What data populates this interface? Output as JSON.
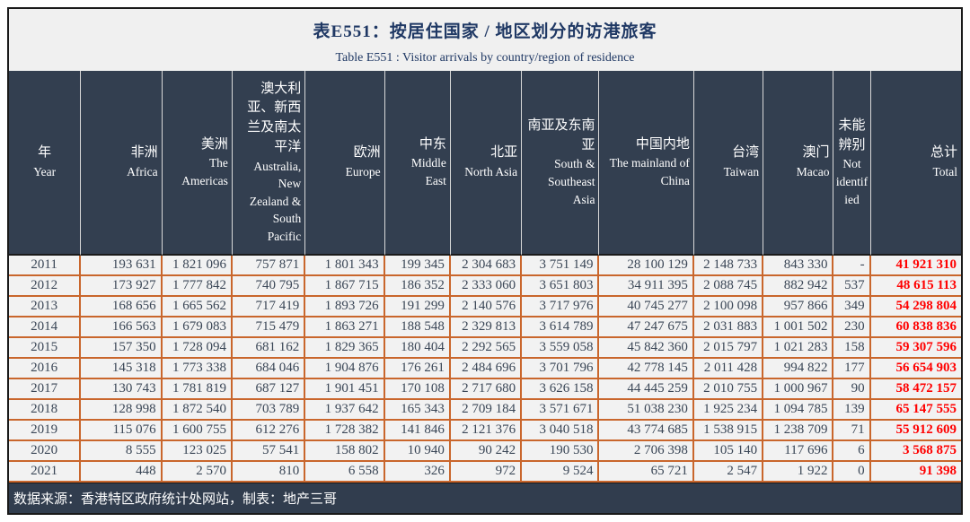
{
  "header": {
    "title_zh": "表E551：按居住国家 / 地区划分的访港旅客",
    "title_en": "Table E551 : Visitor arrivals by country/region of residence"
  },
  "columns": [
    {
      "key": "year",
      "zh": "年",
      "en": "Year"
    },
    {
      "key": "africa",
      "zh": "非洲",
      "en": "Africa"
    },
    {
      "key": "americas",
      "zh": "美洲",
      "en": "The Americas"
    },
    {
      "key": "australia-nz-south-pacific",
      "zh": "澳大利亚、新西兰及南太平洋",
      "en": "Australia, New Zealand & South Pacific"
    },
    {
      "key": "europe",
      "zh": "欧洲",
      "en": "Europe"
    },
    {
      "key": "middle-east",
      "zh": "中东",
      "en": "Middle East"
    },
    {
      "key": "north-asia",
      "zh": "北亚",
      "en": "North Asia"
    },
    {
      "key": "south-southeast-asia",
      "zh": "南亚及东南亚",
      "en": "South & Southeast Asia"
    },
    {
      "key": "mainland-china",
      "zh": "中国内地",
      "en": "The mainland of China"
    },
    {
      "key": "taiwan",
      "zh": "台湾",
      "en": "Taiwan"
    },
    {
      "key": "macao",
      "zh": "澳门",
      "en": "Macao"
    },
    {
      "key": "not-identified",
      "zh": "未能辨别",
      "en": "Not identified"
    },
    {
      "key": "total",
      "zh": "总计",
      "en": "Total"
    }
  ],
  "rows": [
    {
      "year": "2011",
      "values": [
        "193 631",
        "1 821 096",
        "757 871",
        "1 801 343",
        "199 345",
        "2 304 683",
        "3 751 149",
        "28 100 129",
        "2 148 733",
        "843 330",
        "-"
      ],
      "total": "41 921 310"
    },
    {
      "year": "2012",
      "values": [
        "173 927",
        "1 777 842",
        "740 795",
        "1 867 715",
        "186 352",
        "2 333 060",
        "3 651 803",
        "34 911 395",
        "2 088 745",
        "882 942",
        "537"
      ],
      "total": "48 615 113"
    },
    {
      "year": "2013",
      "values": [
        "168 656",
        "1 665 562",
        "717 419",
        "1 893 726",
        "191 299",
        "2 140 576",
        "3 717 976",
        "40 745 277",
        "2 100 098",
        "957 866",
        "349"
      ],
      "total": "54 298 804"
    },
    {
      "year": "2014",
      "values": [
        "166 563",
        "1 679 083",
        "715 479",
        "1 863 271",
        "188 548",
        "2 329 813",
        "3 614 789",
        "47 247 675",
        "2 031 883",
        "1 001 502",
        "230"
      ],
      "total": "60 838 836"
    },
    {
      "year": "2015",
      "values": [
        "157 350",
        "1 728 094",
        "681 162",
        "1 829 365",
        "180 404",
        "2 292 565",
        "3 559 058",
        "45 842 360",
        "2 015 797",
        "1 021 283",
        "158"
      ],
      "total": "59 307 596"
    },
    {
      "year": "2016",
      "values": [
        "145 318",
        "1 773 338",
        "684 046",
        "1 904 876",
        "176 261",
        "2 484 696",
        "3 701 796",
        "42 778 145",
        "2 011 428",
        "994 822",
        "177"
      ],
      "total": "56 654 903"
    },
    {
      "year": "2017",
      "values": [
        "130 743",
        "1 781 819",
        "687 127",
        "1 901 451",
        "170 108",
        "2 717 680",
        "3 626 158",
        "44 445 259",
        "2 010 755",
        "1 000 967",
        "90"
      ],
      "total": "58 472 157"
    },
    {
      "year": "2018",
      "values": [
        "128 998",
        "1 872 540",
        "703 789",
        "1 937 642",
        "165 343",
        "2 709 184",
        "3 571 671",
        "51 038 230",
        "1 925 234",
        "1 094 785",
        "139"
      ],
      "total": "65 147 555"
    },
    {
      "year": "2019",
      "values": [
        "115 076",
        "1 600 755",
        "612 276",
        "1 728 382",
        "141 846",
        "2 121 376",
        "3 040 518",
        "43 774 685",
        "1 538 915",
        "1 238 709",
        "71"
      ],
      "total": "55 912 609"
    },
    {
      "year": "2020",
      "values": [
        "8 555",
        "123 025",
        "57 541",
        "158 802",
        "10 940",
        "90 242",
        "190 530",
        "2 706 398",
        "105 140",
        "117 696",
        "6"
      ],
      "total": "3 568 875"
    },
    {
      "year": "2021",
      "values": [
        "448",
        "2 570",
        "810",
        "6 558",
        "326",
        "972",
        "9 524",
        "65 721",
        "2 547",
        "1 922",
        "0"
      ],
      "total": "91 398"
    }
  ],
  "footer": {
    "source": "数据来源：香港特区政府统计处网站，制表：地产三哥"
  },
  "colors": {
    "header_bg": "#333f50",
    "footer_bg": "#313d4e",
    "title_navy": "#1f3864",
    "grid_orange": "#c9662c",
    "cell_bg": "#f2f2f2",
    "total_red": "#ff0000",
    "data_text": "#3a4656"
  }
}
